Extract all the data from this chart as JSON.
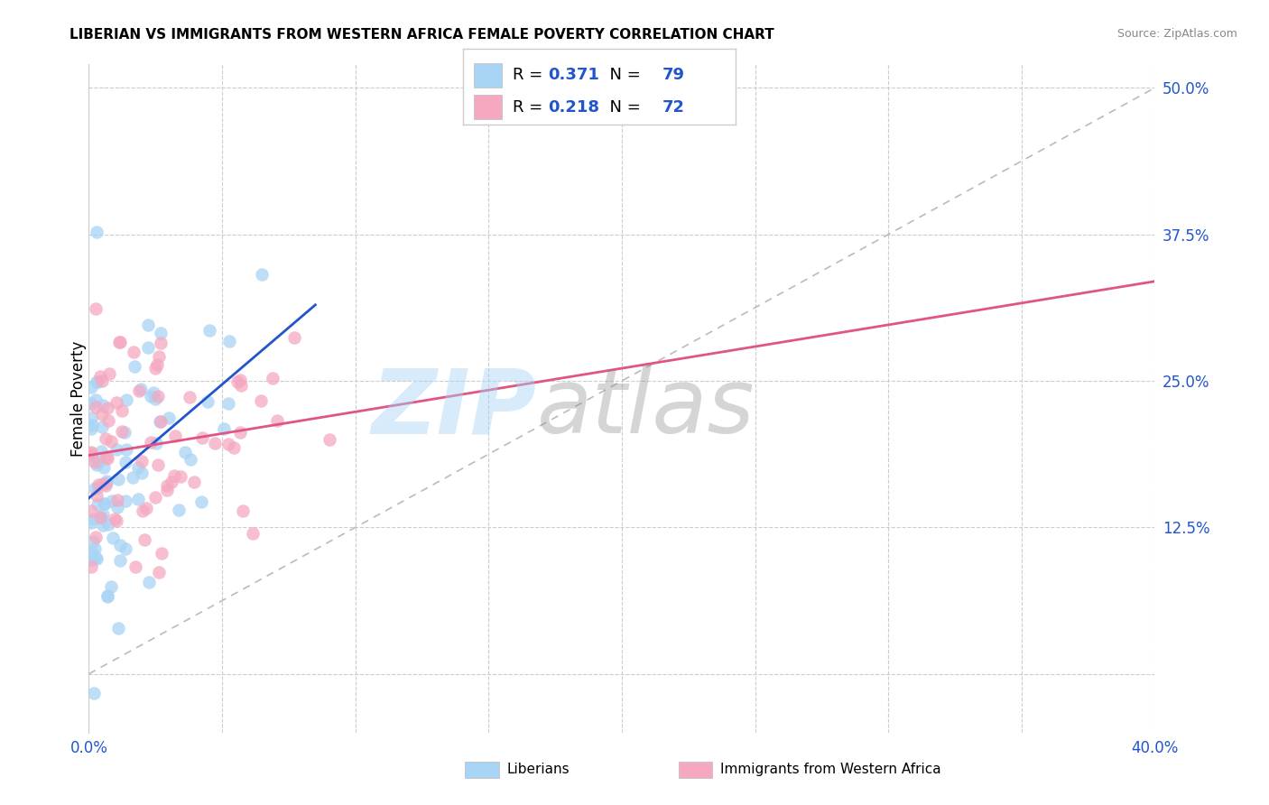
{
  "title": "LIBERIAN VS IMMIGRANTS FROM WESTERN AFRICA FEMALE POVERTY CORRELATION CHART",
  "source": "Source: ZipAtlas.com",
  "ylabel": "Female Poverty",
  "legend_labels": [
    "Liberians",
    "Immigrants from Western Africa"
  ],
  "R1": 0.371,
  "N1": 79,
  "R2": 0.218,
  "N2": 72,
  "xlim": [
    0.0,
    0.4
  ],
  "ylim": [
    -0.05,
    0.52
  ],
  "yticks_right": [
    0.0,
    0.125,
    0.25,
    0.375,
    0.5
  ],
  "ytick_right_labels": [
    "",
    "12.5%",
    "25.0%",
    "37.5%",
    "50.0%"
  ],
  "xticks": [
    0.0,
    0.05,
    0.1,
    0.15,
    0.2,
    0.25,
    0.3,
    0.35,
    0.4
  ],
  "xtick_labels": [
    "0.0%",
    "",
    "",
    "",
    "",
    "",
    "",
    "",
    "40.0%"
  ],
  "color_blue": "#A8D4F5",
  "color_blue_line": "#2255CC",
  "color_pink": "#F5A8C0",
  "color_pink_line": "#E05585",
  "color_diag": "#BBBBBB",
  "watermark_zip": "ZIP",
  "watermark_atlas": "atlas",
  "legend_text_color": "#2255CC",
  "legend_R_color": "#000000"
}
